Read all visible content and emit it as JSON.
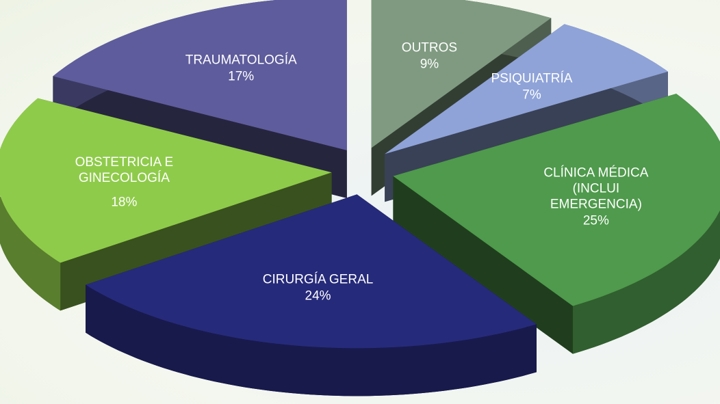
{
  "chart_data": {
    "type": "pie",
    "categories": [
      "OUTROS",
      "PSIQUIATRÍA",
      "CLÍNICA MÉDICA (INCLUI EMERGENCIA)",
      "CIRURGÍA GERAL",
      "OBSTETRICIA  E GINECOLOGÍA",
      "TRAUMATOLOGÍA"
    ],
    "values": [
      9,
      7,
      25,
      24,
      18,
      17
    ],
    "value_labels": [
      "9%",
      "7%",
      "25%",
      "24%",
      "18%",
      "17%"
    ],
    "colors": [
      "#7f9a80",
      "#8fa3d8",
      "#4f9a4c",
      "#262a7a",
      "#8fcb4a",
      "#5e5c9c"
    ]
  }
}
